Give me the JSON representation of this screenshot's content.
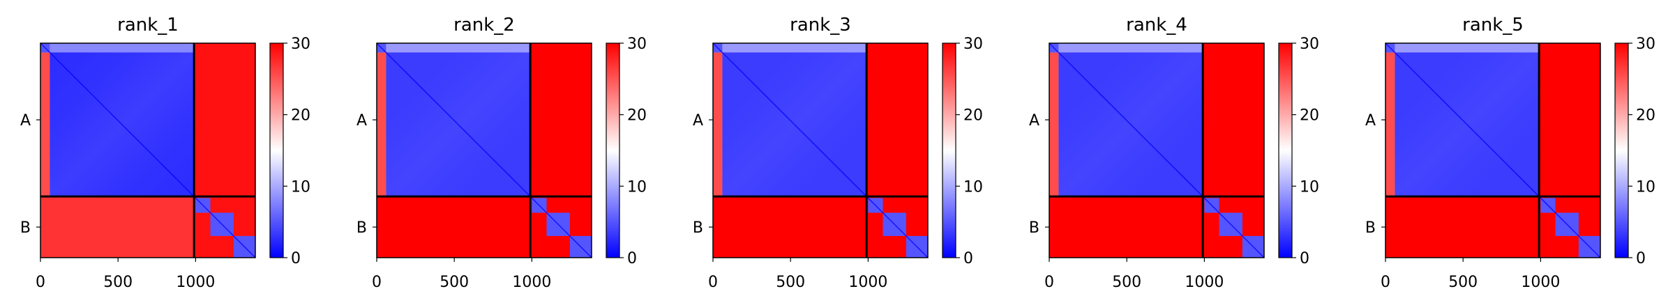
{
  "figure": {
    "colors": {
      "low": "#0000ff",
      "mid": "#ffffff",
      "high": "#ff0000",
      "frame": "#000000",
      "background": "#ffffff"
    }
  },
  "chart_data": [
    {
      "type": "heatmap",
      "title": "rank_1",
      "xticks": [
        "0",
        "500",
        "1000"
      ],
      "xtick_values": [
        0,
        500,
        1000
      ],
      "xlim": [
        0,
        1385
      ],
      "yticks": [
        "A",
        "B"
      ],
      "chain_boundary": 990,
      "diagonal_block_edges": [
        1000,
        1095,
        1245,
        1385
      ],
      "color_scale": {
        "min": 0,
        "max": 30,
        "cmap": "bwr",
        "ticks": [
          "0",
          "10",
          "20",
          "30"
        ],
        "tick_values": [
          0,
          10,
          20,
          30
        ]
      },
      "regions": [
        {
          "name": "A-A",
          "mean": 8
        },
        {
          "name": "A-B",
          "mean": 29
        },
        {
          "name": "B-A",
          "mean": 27
        },
        {
          "name": "B-B",
          "mean": 29
        },
        {
          "name": "B-B diagonal blocks",
          "mean": 5
        }
      ]
    },
    {
      "type": "heatmap",
      "title": "rank_2",
      "xticks": [
        "0",
        "500",
        "1000"
      ],
      "xtick_values": [
        0,
        500,
        1000
      ],
      "xlim": [
        0,
        1385
      ],
      "yticks": [
        "A",
        "B"
      ],
      "chain_boundary": 990,
      "diagonal_block_edges": [
        1000,
        1095,
        1245,
        1385
      ],
      "color_scale": {
        "min": 0,
        "max": 30,
        "cmap": "bwr",
        "ticks": [
          "0",
          "10",
          "20",
          "30"
        ],
        "tick_values": [
          0,
          10,
          20,
          30
        ]
      },
      "regions": [
        {
          "name": "A-A",
          "mean": 9
        },
        {
          "name": "A-B",
          "mean": 30
        },
        {
          "name": "B-A",
          "mean": 30
        },
        {
          "name": "B-B",
          "mean": 30
        },
        {
          "name": "B-B diagonal blocks",
          "mean": 5
        }
      ]
    },
    {
      "type": "heatmap",
      "title": "rank_3",
      "xticks": [
        "0",
        "500",
        "1000"
      ],
      "xtick_values": [
        0,
        500,
        1000
      ],
      "xlim": [
        0,
        1385
      ],
      "yticks": [
        "A",
        "B"
      ],
      "chain_boundary": 990,
      "diagonal_block_edges": [
        1000,
        1095,
        1245,
        1385
      ],
      "color_scale": {
        "min": 0,
        "max": 30,
        "cmap": "bwr",
        "ticks": [
          "0",
          "10",
          "20",
          "30"
        ],
        "tick_values": [
          0,
          10,
          20,
          30
        ]
      },
      "regions": [
        {
          "name": "A-A",
          "mean": 9
        },
        {
          "name": "A-B",
          "mean": 30
        },
        {
          "name": "B-A",
          "mean": 30
        },
        {
          "name": "B-B",
          "mean": 30
        },
        {
          "name": "B-B diagonal blocks",
          "mean": 5
        }
      ]
    },
    {
      "type": "heatmap",
      "title": "rank_4",
      "xticks": [
        "0",
        "500",
        "1000"
      ],
      "xtick_values": [
        0,
        500,
        1000
      ],
      "xlim": [
        0,
        1385
      ],
      "yticks": [
        "A",
        "B"
      ],
      "chain_boundary": 990,
      "diagonal_block_edges": [
        1000,
        1095,
        1245,
        1385
      ],
      "color_scale": {
        "min": 0,
        "max": 30,
        "cmap": "bwr",
        "ticks": [
          "0",
          "10",
          "20",
          "30"
        ],
        "tick_values": [
          0,
          10,
          20,
          30
        ]
      },
      "regions": [
        {
          "name": "A-A",
          "mean": 9
        },
        {
          "name": "A-B",
          "mean": 30
        },
        {
          "name": "B-A",
          "mean": 30
        },
        {
          "name": "B-B",
          "mean": 30
        },
        {
          "name": "B-B diagonal blocks",
          "mean": 5
        }
      ]
    },
    {
      "type": "heatmap",
      "title": "rank_5",
      "xticks": [
        "0",
        "500",
        "1000"
      ],
      "xtick_values": [
        0,
        500,
        1000
      ],
      "xlim": [
        0,
        1385
      ],
      "yticks": [
        "A",
        "B"
      ],
      "chain_boundary": 990,
      "diagonal_block_edges": [
        1000,
        1095,
        1245,
        1385
      ],
      "color_scale": {
        "min": 0,
        "max": 30,
        "cmap": "bwr",
        "ticks": [
          "0",
          "10",
          "20",
          "30"
        ],
        "tick_values": [
          0,
          10,
          20,
          30
        ]
      },
      "regions": [
        {
          "name": "A-A",
          "mean": 9
        },
        {
          "name": "A-B",
          "mean": 30
        },
        {
          "name": "B-A",
          "mean": 30
        },
        {
          "name": "B-B",
          "mean": 30
        },
        {
          "name": "B-B diagonal blocks",
          "mean": 5
        }
      ]
    }
  ]
}
